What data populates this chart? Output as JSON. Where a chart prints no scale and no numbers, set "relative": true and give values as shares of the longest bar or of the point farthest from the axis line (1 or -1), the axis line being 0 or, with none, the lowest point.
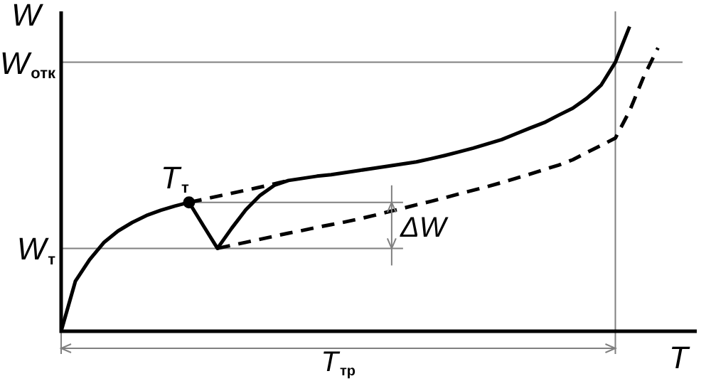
{
  "chart_data": {
    "type": "line",
    "relative": true,
    "xlabel": "T",
    "ylabel": "W",
    "legend": false,
    "categories": [
      null,
      null,
      null,
      null,
      null,
      null,
      null,
      null,
      null,
      null,
      null,
      null,
      null,
      null,
      null,
      null,
      null,
      null,
      null,
      null,
      null,
      null,
      null,
      null,
      null,
      null,
      null,
      null,
      null,
      null,
      null,
      null,
      null,
      null,
      null,
      null,
      null,
      null,
      null,
      null,
      null,
      null,
      null
    ],
    "series": [
      {
        "color": "#000000",
        "line_style": "solid",
        "values": [
          0,
          0.164,
          0.235,
          0.291,
          0.329,
          0.357,
          0.38,
          0.397,
          0.411,
          0.423,
          0.347,
          0.272,
          0.338,
          0.399,
          0.446,
          0.479,
          0.495,
          0.502,
          0.509,
          0.514,
          0.521,
          0.528,
          0.535,
          0.542,
          0.549,
          0.556,
          0.566,
          0.577,
          0.589,
          0.601,
          0.615,
          0.629,
          0.648,
          0.667,
          0.685,
          0.709,
          0.732,
          0.765,
          0.808,
          0.883,
          1,
          null,
          null
        ]
      },
      {
        "color": "#000000",
        "line_style": "dashed",
        "values": [
          null,
          null,
          null,
          null,
          null,
          null,
          null,
          null,
          null,
          0.423,
          0.433,
          0.443,
          0.453,
          0.463,
          0.473,
          0.484,
          0.495,
          null,
          null,
          null,
          null,
          null,
          null,
          null,
          null,
          null,
          null,
          null,
          null,
          null,
          null,
          null,
          null,
          null,
          null,
          null,
          null,
          null,
          null,
          null,
          null,
          null,
          null
        ]
      },
      {
        "color": "#000000",
        "line_style": "dashed",
        "values": [
          null,
          null,
          null,
          null,
          null,
          null,
          null,
          null,
          null,
          null,
          null,
          0.272,
          0.282,
          0.292,
          0.302,
          0.312,
          0.322,
          0.331,
          0.341,
          0.35,
          0.359,
          0.369,
          0.38,
          0.392,
          0.403,
          0.415,
          0.426,
          0.438,
          0.451,
          0.463,
          0.475,
          0.488,
          0.502,
          0.516,
          0.531,
          0.545,
          0.563,
          0.587,
          0.61,
          0.634,
          0.723,
          0.836,
          0.93
        ]
      }
    ],
    "ref_lines": [
      {
        "axis": "y",
        "value": 0.883,
        "label": "W$_{отк}$",
        "color": "#808080"
      },
      {
        "axis": "y",
        "value": 0.272,
        "label": "W$_{т}$",
        "color": "#808080"
      }
    ],
    "annotations": [
      "T$_{т}$",
      "ΔW",
      "T$_{тр}$"
    ]
  }
}
